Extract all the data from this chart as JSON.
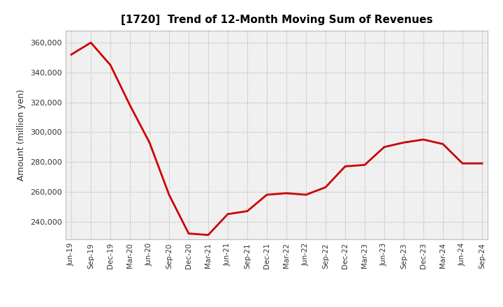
{
  "title": "[1720]  Trend of 12-Month Moving Sum of Revenues",
  "ylabel": "Amount (million yen)",
  "line_color": "#cc0000",
  "background_color": "#ffffff",
  "plot_bg_color": "#f0f0f0",
  "grid_color": "#aaaaaa",
  "tick_labels": [
    "Jun-19",
    "Sep-19",
    "Dec-19",
    "Mar-20",
    "Jun-20",
    "Sep-20",
    "Dec-20",
    "Mar-21",
    "Jun-21",
    "Sep-21",
    "Dec-21",
    "Mar-22",
    "Jun-22",
    "Sep-22",
    "Dec-22",
    "Mar-23",
    "Jun-23",
    "Sep-23",
    "Dec-23",
    "Mar-24",
    "Jun-24",
    "Sep-24"
  ],
  "values": [
    352000,
    360000,
    345000,
    318000,
    293000,
    258000,
    232000,
    231000,
    245000,
    247000,
    258000,
    259000,
    258000,
    263000,
    277000,
    278000,
    290000,
    293000,
    295000,
    292000,
    279000,
    279000
  ],
  "ylim": [
    228000,
    368000
  ],
  "yticks": [
    240000,
    260000,
    280000,
    300000,
    320000,
    340000,
    360000
  ]
}
